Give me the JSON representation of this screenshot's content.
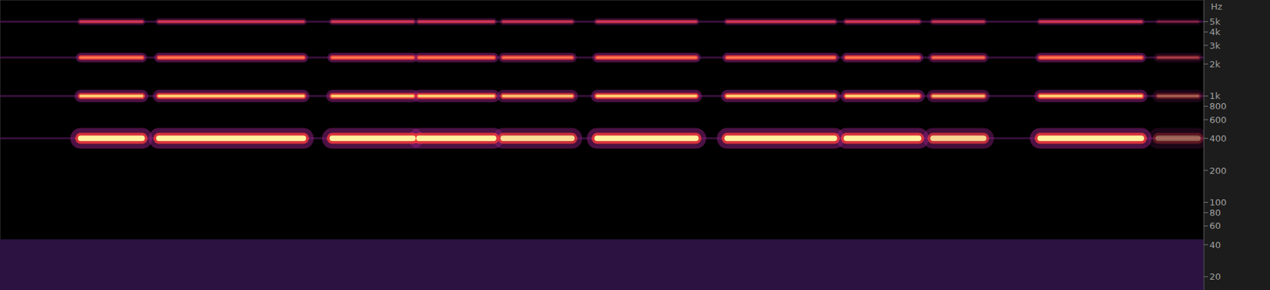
{
  "chart_data": {
    "type": "spectrogram",
    "y_label": "Hz",
    "xlim": [
      0,
      100
    ],
    "ylim": [
      15,
      8000
    ],
    "log": "y",
    "tick_labels": "y",
    "grid": false,
    "yticks": [
      {
        "value": 5000,
        "label": "5k"
      },
      {
        "value": 4000,
        "label": "4k"
      },
      {
        "value": 3000,
        "label": "3k"
      },
      {
        "value": 2000,
        "label": "2k"
      },
      {
        "value": 1000,
        "label": "1k"
      },
      800,
      600,
      400,
      200,
      100,
      80,
      60,
      40,
      20
    ],
    "harmonics": [
      {
        "freq": 400,
        "color": "#fff2a0"
      },
      {
        "freq": 1000,
        "color": "#ffd070"
      },
      {
        "freq": 2300,
        "color": "#ff7a50"
      },
      {
        "freq": 5000,
        "color": "#e0407a"
      }
    ],
    "notes": [
      {
        "start": 6.7,
        "end": 11.8,
        "level": 1
      },
      {
        "start": 13.2,
        "end": 25.2,
        "level": 1
      },
      {
        "start": 27.6,
        "end": 34.3,
        "level": 1
      },
      {
        "start": 34.8,
        "end": 41.0,
        "level": 1
      },
      {
        "start": 41.8,
        "end": 47.5,
        "level": 0.9
      },
      {
        "start": 49.6,
        "end": 57.8,
        "level": 1
      },
      {
        "start": 60.4,
        "end": 69.3,
        "level": 1
      },
      {
        "start": 70.3,
        "end": 76.3,
        "level": 1
      },
      {
        "start": 77.5,
        "end": 81.7,
        "level": 0.85
      },
      {
        "start": 86.4,
        "end": 94.8,
        "level": 1
      },
      {
        "start": 96.2,
        "end": 99.5,
        "level": 0.35
      }
    ],
    "low_band": [
      15,
      45
    ]
  }
}
